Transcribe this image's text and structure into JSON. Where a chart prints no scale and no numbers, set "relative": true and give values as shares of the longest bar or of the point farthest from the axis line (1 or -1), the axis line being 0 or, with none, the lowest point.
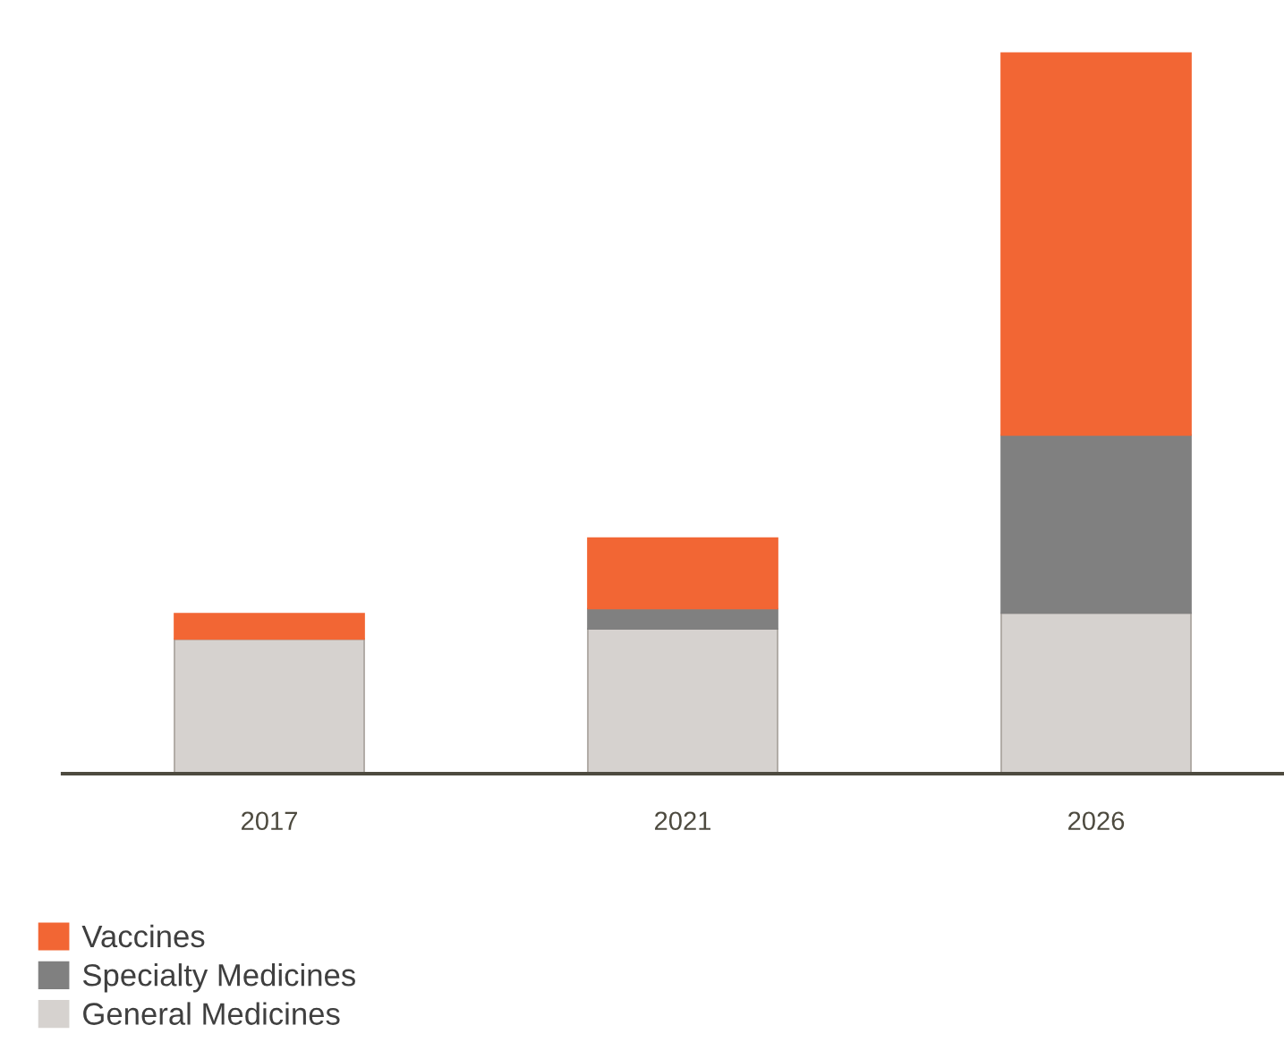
{
  "chart_data": {
    "type": "bar",
    "stacked": true,
    "relative": true,
    "legend": "bottom left",
    "categories": [
      "2017",
      "2021",
      "2026"
    ],
    "series": [
      {
        "name": "General Medicines",
        "color": "#d6d2cf",
        "values": [
          0.187,
          0.201,
          0.223
        ]
      },
      {
        "name": "Specialty Medicines",
        "color": "#808080",
        "values": [
          null,
          0.028,
          0.247
        ]
      },
      {
        "name": "Vaccines",
        "color": "#f26634",
        "values": [
          0.035,
          0.098,
          0.53
        ]
      }
    ]
  }
}
